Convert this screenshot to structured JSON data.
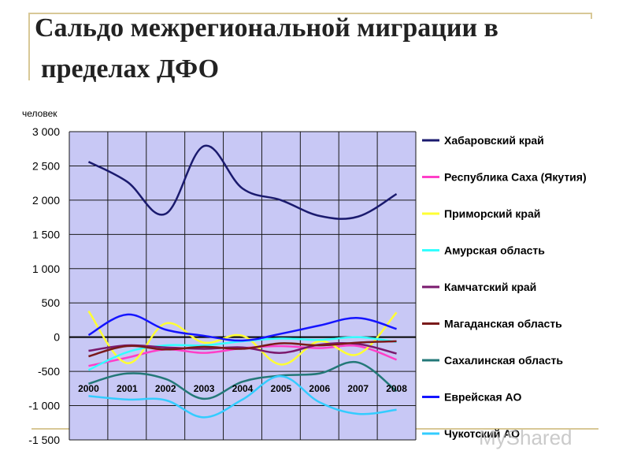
{
  "title_line1": "Сальдо межрегиональной миграции в",
  "title_line2": "пределах ДФО",
  "watermark": "MyShared",
  "colors": {
    "plot_bg": "#c8c8f5",
    "grid": "#1a1a1a",
    "accent_line": "#d8c896"
  },
  "chart_data": {
    "type": "line",
    "title": "",
    "ylabel": "человек",
    "xlabel": "",
    "ylim": [
      -1500,
      3000
    ],
    "yticks": [
      3000,
      2500,
      2000,
      1500,
      1000,
      500,
      0,
      -500,
      -1000,
      -1500
    ],
    "ytick_labels": [
      "3 000",
      "2 500",
      "2 000",
      "1 500",
      "1 000",
      "500",
      "0",
      "-500",
      "-1 000",
      "-1 500"
    ],
    "categories": [
      "2000",
      "2001",
      "2002",
      "2003",
      "2004",
      "2005",
      "2006",
      "2007",
      "2008"
    ],
    "grid": true,
    "legend": "right",
    "series": [
      {
        "name": "Хабаровский край",
        "color": "#1a1a6e",
        "values": [
          2560,
          2270,
          1800,
          2790,
          2170,
          2000,
          1770,
          1760,
          2090
        ]
      },
      {
        "name": "Республика Саха  (Якутия)",
        "color": "#ff3fc8",
        "values": [
          -420,
          -300,
          -180,
          -230,
          -160,
          -130,
          -160,
          -130,
          -330
        ]
      },
      {
        "name": "Приморский край",
        "color": "#ffff33",
        "values": [
          380,
          -380,
          200,
          -80,
          20,
          -400,
          -60,
          -250,
          360
        ]
      },
      {
        "name": "Амурская область",
        "color": "#33ffff",
        "values": [
          -480,
          -220,
          -120,
          -120,
          -60,
          -20,
          -40,
          0,
          -70
        ]
      },
      {
        "name": "Камчатский край",
        "color": "#7a1a6e",
        "values": [
          -200,
          -120,
          -150,
          -170,
          -150,
          -230,
          -110,
          -100,
          -240
        ]
      },
      {
        "name": "Магаданская область",
        "color": "#7a1a1a",
        "values": [
          -280,
          -130,
          -180,
          -140,
          -170,
          -90,
          -120,
          -80,
          -60
        ]
      },
      {
        "name": "Сахалинская область",
        "color": "#237878",
        "values": [
          -680,
          -530,
          -610,
          -900,
          -650,
          -560,
          -530,
          -370,
          -790
        ]
      },
      {
        "name": "Еврейская АО",
        "color": "#1414ff",
        "values": [
          30,
          330,
          110,
          20,
          -50,
          50,
          170,
          280,
          120
        ]
      },
      {
        "name": "Чукотский АО",
        "color": "#33ccff",
        "values": [
          -860,
          -910,
          -920,
          -1170,
          -910,
          -570,
          -950,
          -1120,
          -1060
        ]
      }
    ]
  }
}
